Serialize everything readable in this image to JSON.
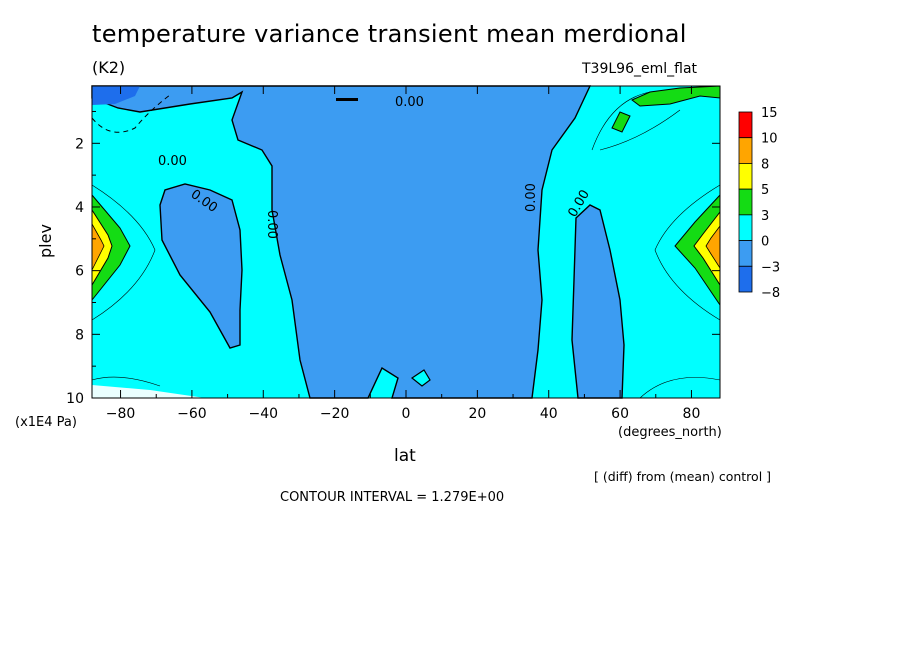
{
  "figure": {
    "title": "temperature variance transient mean merdional",
    "units": "(K2)",
    "run_label": "T39L96_eml_flat",
    "note": "[ (diff) from (mean) control ]",
    "contour_interval": "CONTOUR INTERVAL = 1.279E+00"
  },
  "colors": {
    "level_-8": "#1e6eec",
    "level_-3": "#3c9cf2",
    "level_0": "#00ffff",
    "level_3": "#14dc14",
    "level_5": "#ffff00",
    "level_8": "#ffa500",
    "level_10": "#ff0000"
  },
  "chart_data": {
    "type": "heatmap",
    "variable": "temperature variance transient mean merdional",
    "xlabel": "lat",
    "x_units": "(degrees_north)",
    "ylabel": "plev",
    "y_units": "(x1E4 Pa)",
    "xlim": [
      -88,
      88
    ],
    "ylim": [
      10,
      0.2
    ],
    "x_ticks": [
      -80,
      -60,
      -40,
      -20,
      0,
      20,
      40,
      60,
      80
    ],
    "x_tick_labels": [
      "−80",
      "−60",
      "−40",
      "−20",
      "0",
      "20",
      "40",
      "60",
      "80"
    ],
    "y_ticks": [
      2,
      4,
      6,
      8,
      10
    ],
    "y_tick_labels": [
      "2",
      "4",
      "6",
      "8",
      "10"
    ],
    "colorbar_levels": [
      "15",
      "10",
      "8",
      "5",
      "3",
      "0",
      "−3",
      "−8"
    ],
    "contour_label": "0.00",
    "regions": [
      {
        "band": "-3 to 0",
        "description": "central tropical region",
        "lat_range": [
          -33,
          38
        ],
        "plev_range": [
          0.6,
          10
        ]
      },
      {
        "band": "-3 to 0",
        "description": "southern midlatitude pocket",
        "lat_range": [
          -70,
          -42
        ],
        "plev_range": [
          3.0,
          8.5
        ]
      },
      {
        "band": "-3 to 0",
        "description": "northern high-latitude column",
        "lat_range": [
          40,
          63
        ],
        "plev_range": [
          3.0,
          10
        ]
      },
      {
        "band": "-8 to -3",
        "description": "south polar upper level",
        "lat_range": [
          -88,
          -78
        ],
        "plev_range": [
          0.2,
          1.0
        ]
      },
      {
        "band": "3 to 15",
        "description": "south polar maximum",
        "lat_range": [
          -88,
          -78
        ],
        "plev_range": [
          3.5,
          7.0
        ],
        "peak_level": "8 to 10"
      },
      {
        "band": "3 to 15",
        "description": "north polar maximum",
        "lat_range": [
          76,
          88
        ],
        "plev_range": [
          3.5,
          7.0
        ],
        "peak_level": "8 to 10"
      },
      {
        "band": "3 to 5",
        "description": "north polar upper level",
        "lat_range": [
          60,
          88
        ],
        "plev_range": [
          0.2,
          1.8
        ]
      }
    ]
  }
}
